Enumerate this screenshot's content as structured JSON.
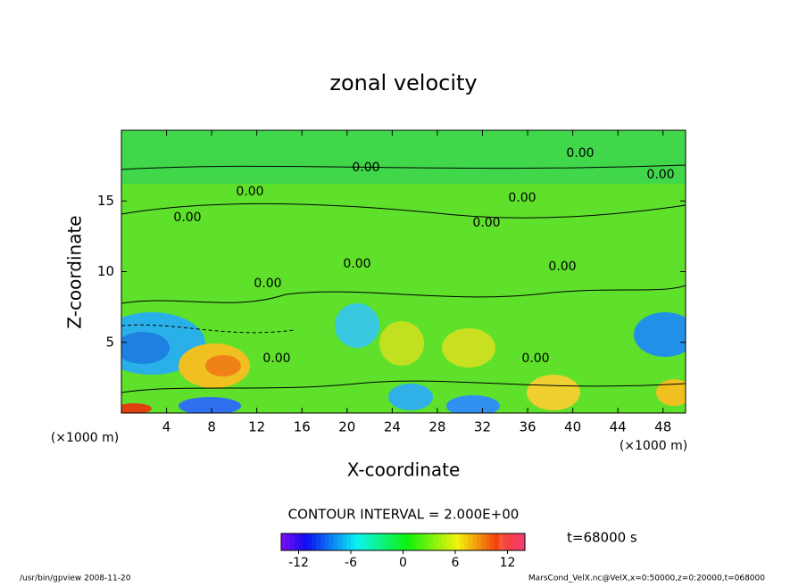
{
  "chart_data": {
    "type": "contour",
    "title": "zonal velocity",
    "xlabel": "X-coordinate",
    "ylabel": "Z-coordinate",
    "x_unit_label": "(×1000 m)",
    "y_unit_label": "(×1000 m)",
    "xlim": [
      0,
      50
    ],
    "xticks": [
      4,
      8,
      12,
      16,
      20,
      24,
      28,
      32,
      36,
      40,
      44,
      48
    ],
    "ylim": [
      0,
      20
    ],
    "yticks": [
      5,
      10,
      15
    ],
    "contour_labels": [
      {
        "value": 0,
        "label": "0.00"
      },
      {
        "value": 0,
        "label": "0.00"
      },
      {
        "value": 0,
        "label": "0.00"
      },
      {
        "value": 0,
        "label": "0.00"
      },
      {
        "value": 0,
        "label": "0.00"
      },
      {
        "value": 0,
        "label": "0.00"
      },
      {
        "value": 0,
        "label": "0.00"
      },
      {
        "value": 0,
        "label": "0.00"
      },
      {
        "value": 0,
        "label": "0.00"
      },
      {
        "value": 0,
        "label": "0.00"
      },
      {
        "value": 0,
        "label": "0.00"
      },
      {
        "value": 0,
        "label": "0.00"
      }
    ],
    "contour_interval_text": "CONTOUR INTERVAL = 2.000E+00",
    "time_text": "t=68000 s",
    "colorbar": {
      "clim": [
        -14,
        14
      ],
      "ticks": [
        -12,
        -6,
        0,
        6,
        12
      ]
    },
    "footer_left": "/usr/bin/gpview  2008-11-20",
    "footer_right": "MarsCond_VelX.nc@VelX,x=0:50000,z=0:20000,t=068000"
  }
}
